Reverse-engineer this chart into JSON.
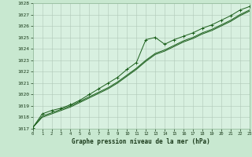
{
  "background_color": "#c8e8d0",
  "plot_bg_color": "#d8f0e0",
  "grid_color": "#b0c8b8",
  "line_color": "#1a5e1a",
  "title": "Graphe pression niveau de la mer (hPa)",
  "x_ticks": [
    0,
    1,
    2,
    3,
    4,
    5,
    6,
    7,
    8,
    9,
    10,
    11,
    12,
    13,
    14,
    15,
    16,
    17,
    18,
    19,
    20,
    21,
    22,
    23
  ],
  "ylim": [
    1017,
    1028
  ],
  "y_ticks": [
    1017,
    1018,
    1019,
    1020,
    1021,
    1022,
    1023,
    1024,
    1025,
    1026,
    1027,
    1028
  ],
  "series1_x": [
    0,
    1,
    2,
    3,
    4,
    5,
    6,
    7,
    8,
    9,
    10,
    11,
    12,
    13,
    14,
    15,
    16,
    17,
    18,
    19,
    20,
    21,
    22,
    23
  ],
  "series1_y": [
    1017.1,
    1018.3,
    1018.6,
    1018.8,
    1019.1,
    1019.5,
    1020.0,
    1020.5,
    1021.0,
    1021.5,
    1022.2,
    1022.8,
    1024.8,
    1025.0,
    1024.4,
    1024.8,
    1025.1,
    1025.4,
    1025.8,
    1026.1,
    1026.5,
    1026.9,
    1027.4,
    1027.7
  ],
  "series2_x": [
    0,
    1,
    2,
    3,
    4,
    5,
    6,
    7,
    8,
    9,
    10,
    11,
    12,
    13,
    14,
    15,
    16,
    17,
    18,
    19,
    20,
    21,
    22,
    23
  ],
  "series2_y": [
    1017.1,
    1018.1,
    1018.4,
    1018.7,
    1019.0,
    1019.4,
    1019.8,
    1020.2,
    1020.6,
    1021.1,
    1021.7,
    1022.3,
    1023.0,
    1023.6,
    1023.9,
    1024.3,
    1024.7,
    1025.0,
    1025.4,
    1025.7,
    1026.1,
    1026.5,
    1027.0,
    1027.4
  ],
  "series3_x": [
    0,
    1,
    2,
    3,
    4,
    5,
    6,
    7,
    8,
    9,
    10,
    11,
    12,
    13,
    14,
    15,
    16,
    17,
    18,
    19,
    20,
    21,
    22,
    23
  ],
  "series3_y": [
    1017.1,
    1018.0,
    1018.3,
    1018.6,
    1018.9,
    1019.3,
    1019.7,
    1020.1,
    1020.5,
    1021.0,
    1021.6,
    1022.2,
    1022.9,
    1023.5,
    1023.8,
    1024.2,
    1024.6,
    1024.9,
    1025.3,
    1025.6,
    1026.0,
    1026.4,
    1026.9,
    1027.3
  ]
}
